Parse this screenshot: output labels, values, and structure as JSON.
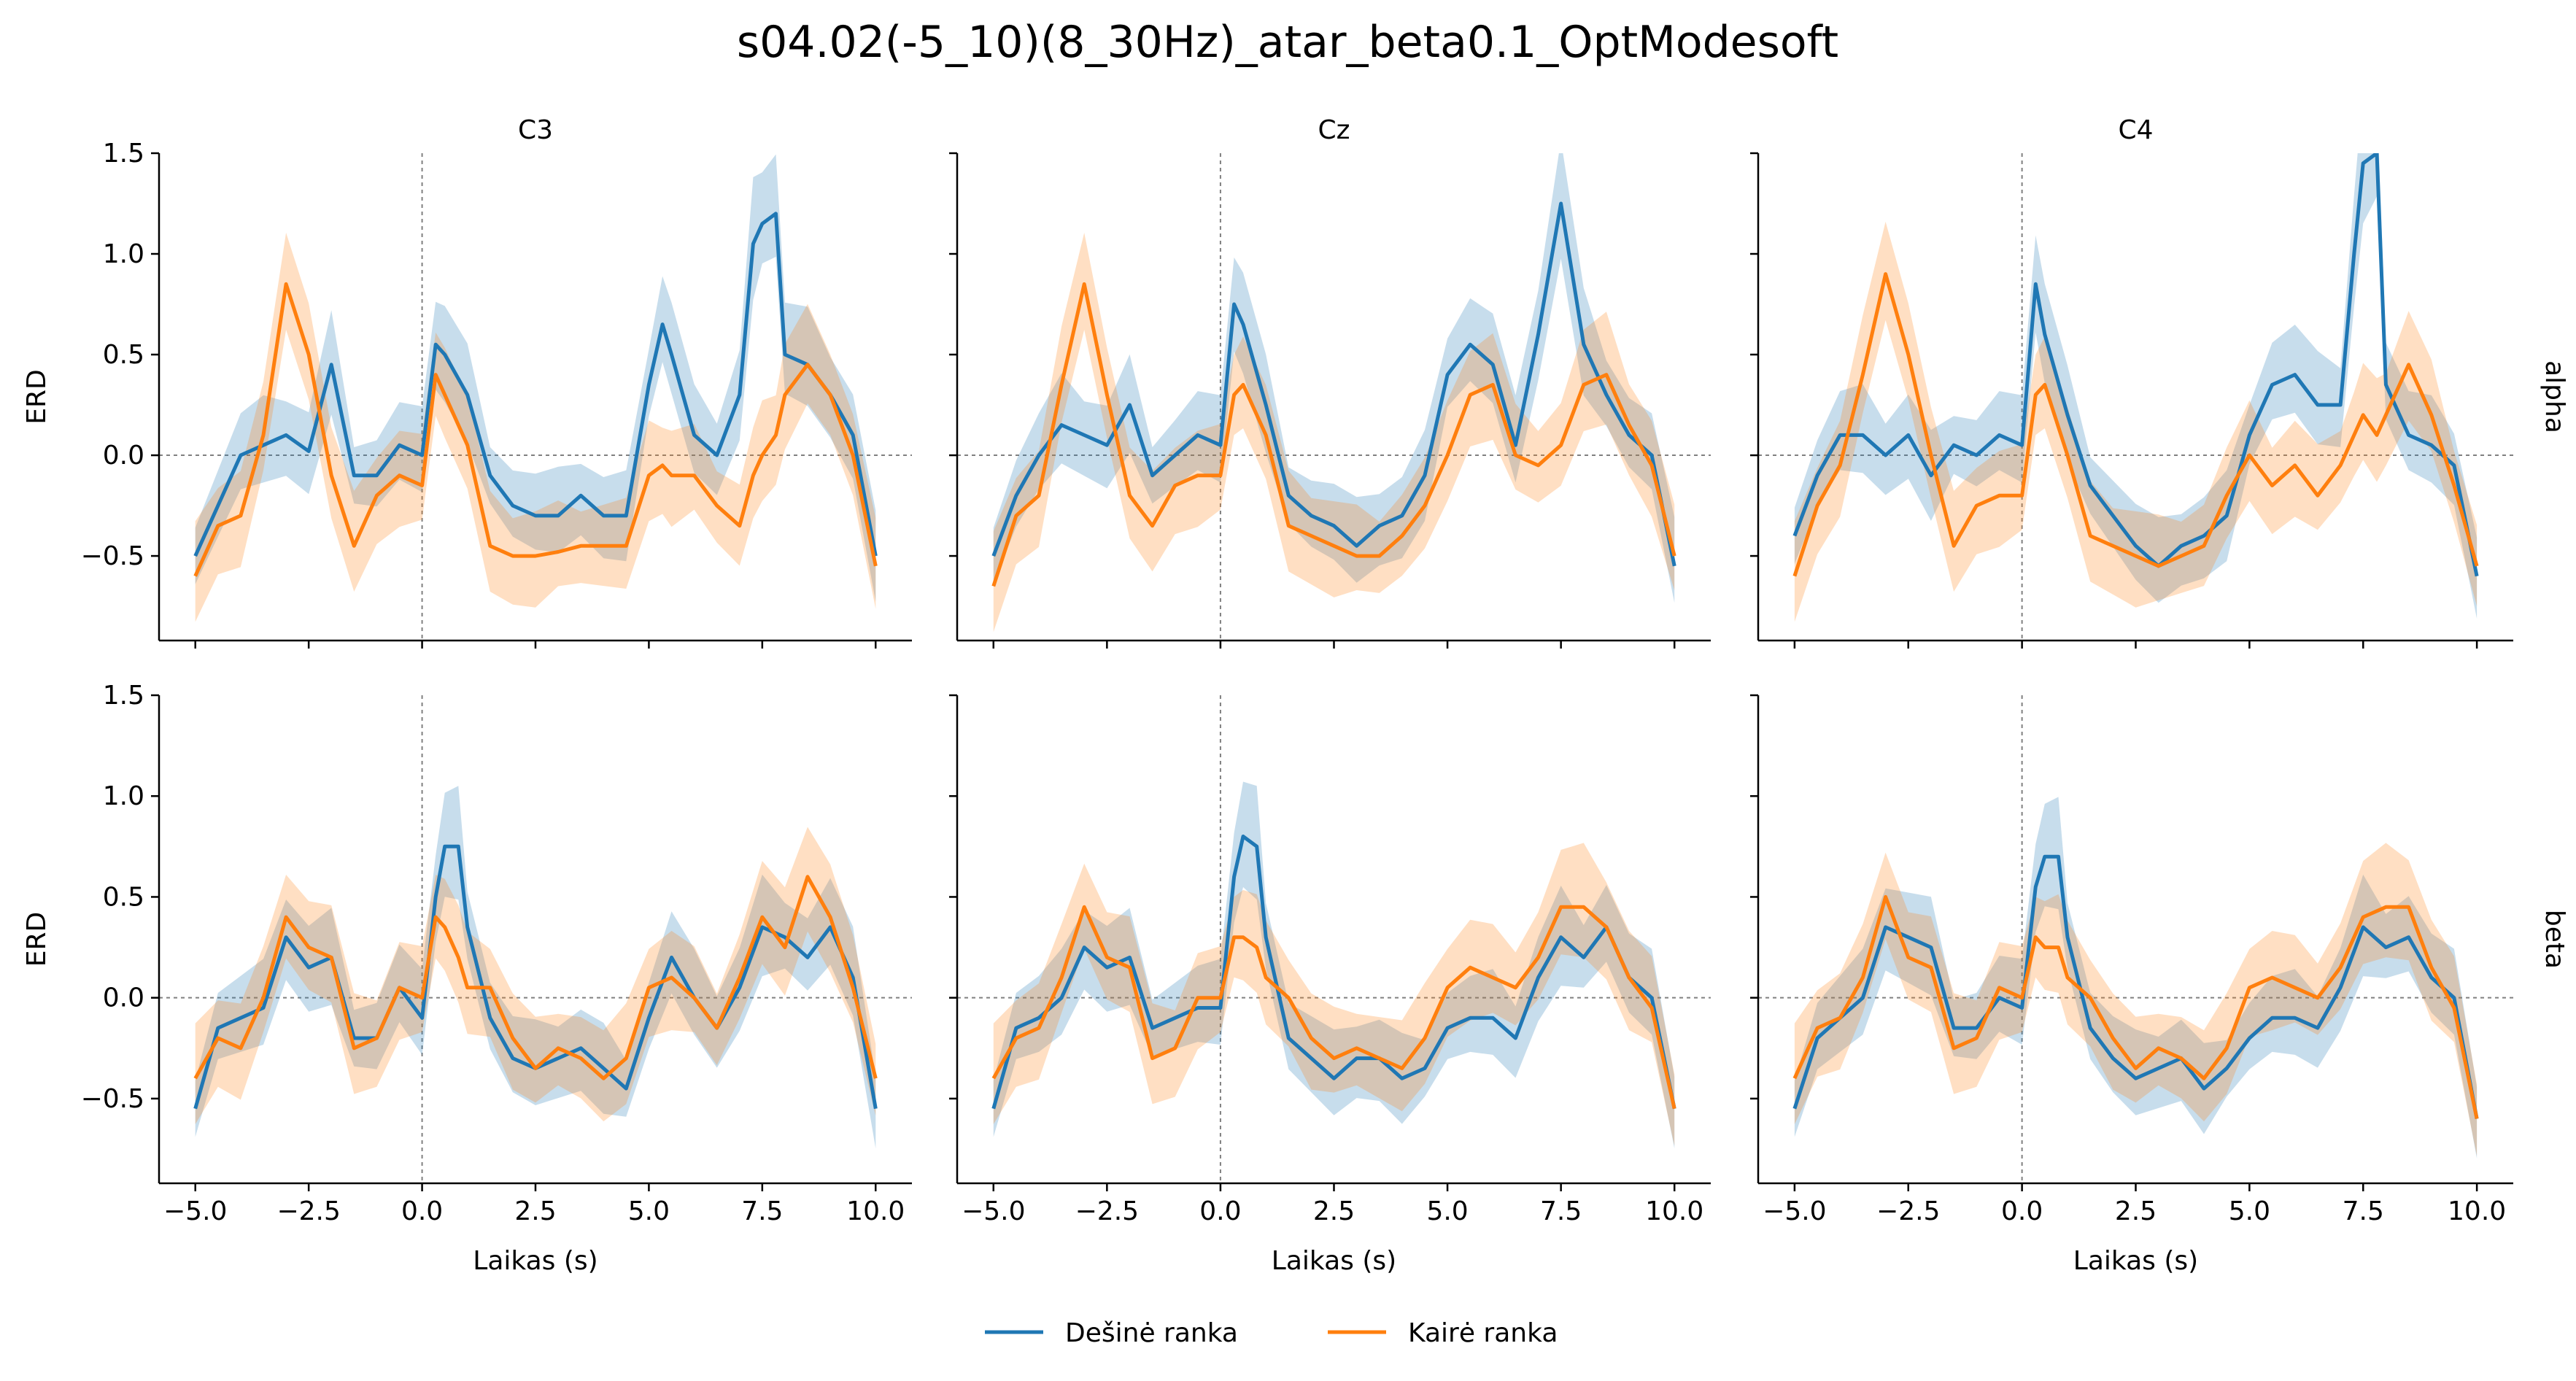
{
  "figure": {
    "title": "s04.02(-5_10)(8_30Hz)_atar_beta0.1_OptModesoft",
    "columns": [
      "C3",
      "Cz",
      "C4"
    ],
    "rows": [
      "alpha",
      "beta"
    ],
    "xlabel": "Laikas (s)",
    "ylabel": "ERD",
    "xticks": [
      "−5.0",
      "−2.5",
      "0.0",
      "2.5",
      "5.0",
      "7.5",
      "10.0"
    ],
    "yticks": [
      "−0.5",
      "0.0",
      "0.5",
      "1.0",
      "1.5"
    ],
    "legend": [
      {
        "label": "Dešinė ranka",
        "color": "#1f77b4"
      },
      {
        "label": "Kairė ranka",
        "color": "#ff7f0e"
      }
    ]
  },
  "chart_data": {
    "type": "line",
    "title": "s04.02(-5_10)(8_30Hz)_atar_beta0.1_OptModesoft",
    "xlabel": "Laikas (s)",
    "ylabel": "ERD",
    "xlim": [
      -5.8,
      10.8
    ],
    "ylim": [
      -0.92,
      1.5
    ],
    "grid": false,
    "legend_position": "bottom-center",
    "reference_lines": {
      "vertical_x": 0.0,
      "horizontal_y": 0.0,
      "style": "dashed-gray"
    },
    "shaded_bands": "variability band around each series (same color, translucent)",
    "series_names": [
      "Dešinė ranka",
      "Kairė ranka"
    ],
    "panels": [
      {
        "row": "alpha",
        "column": "C3",
        "x": [
          -5.0,
          -4.5,
          -4.0,
          -3.5,
          -3.0,
          -2.5,
          -2.0,
          -1.5,
          -1.0,
          -0.5,
          0.0,
          0.3,
          0.5,
          1.0,
          1.5,
          2.0,
          2.5,
          3.0,
          3.5,
          4.0,
          4.5,
          5.0,
          5.3,
          5.5,
          6.0,
          6.5,
          7.0,
          7.3,
          7.5,
          7.8,
          8.0,
          8.5,
          9.0,
          9.5,
          10.0
        ],
        "series": [
          {
            "name": "Dešinė ranka",
            "values": [
              -0.5,
              -0.25,
              0.0,
              0.05,
              0.1,
              0.02,
              0.45,
              -0.1,
              -0.1,
              0.05,
              0.0,
              0.55,
              0.5,
              0.3,
              -0.1,
              -0.25,
              -0.3,
              -0.3,
              -0.2,
              -0.3,
              -0.3,
              0.35,
              0.65,
              0.5,
              0.1,
              0.0,
              0.3,
              1.05,
              1.15,
              1.2,
              0.5,
              0.45,
              0.3,
              0.1,
              -0.5
            ]
          },
          {
            "name": "Kairė ranka",
            "values": [
              -0.6,
              -0.35,
              -0.3,
              0.1,
              0.85,
              0.5,
              -0.1,
              -0.45,
              -0.2,
              -0.1,
              -0.15,
              0.4,
              0.3,
              0.05,
              -0.45,
              -0.5,
              -0.5,
              -0.48,
              -0.45,
              -0.45,
              -0.45,
              -0.1,
              -0.05,
              -0.1,
              -0.1,
              -0.25,
              -0.35,
              -0.1,
              0.0,
              0.1,
              0.3,
              0.45,
              0.3,
              0.0,
              -0.55
            ]
          }
        ]
      },
      {
        "row": "alpha",
        "column": "Cz",
        "x": [
          -5.0,
          -4.5,
          -4.0,
          -3.5,
          -3.0,
          -2.5,
          -2.0,
          -1.5,
          -1.0,
          -0.5,
          0.0,
          0.3,
          0.5,
          1.0,
          1.5,
          2.0,
          2.5,
          3.0,
          3.5,
          4.0,
          4.5,
          5.0,
          5.5,
          6.0,
          6.5,
          7.0,
          7.5,
          8.0,
          8.5,
          9.0,
          9.5,
          10.0
        ],
        "series": [
          {
            "name": "Dešinė ranka",
            "values": [
              -0.5,
              -0.2,
              0.0,
              0.15,
              0.1,
              0.05,
              0.25,
              -0.1,
              0.0,
              0.1,
              0.05,
              0.75,
              0.65,
              0.25,
              -0.2,
              -0.3,
              -0.35,
              -0.45,
              -0.35,
              -0.3,
              -0.1,
              0.4,
              0.55,
              0.45,
              0.05,
              0.6,
              1.25,
              0.55,
              0.3,
              0.1,
              0.0,
              -0.55
            ]
          },
          {
            "name": "Kairė ranka",
            "values": [
              -0.65,
              -0.3,
              -0.2,
              0.35,
              0.85,
              0.3,
              -0.2,
              -0.35,
              -0.15,
              -0.1,
              -0.1,
              0.3,
              0.35,
              0.1,
              -0.35,
              -0.4,
              -0.45,
              -0.5,
              -0.5,
              -0.4,
              -0.25,
              0.0,
              0.3,
              0.35,
              0.0,
              -0.05,
              0.05,
              0.35,
              0.4,
              0.15,
              -0.05,
              -0.5
            ]
          }
        ]
      },
      {
        "row": "alpha",
        "column": "C4",
        "x": [
          -5.0,
          -4.5,
          -4.0,
          -3.5,
          -3.0,
          -2.5,
          -2.0,
          -1.5,
          -1.0,
          -0.5,
          0.0,
          0.3,
          0.5,
          1.0,
          1.5,
          2.0,
          2.5,
          3.0,
          3.5,
          4.0,
          4.5,
          5.0,
          5.5,
          6.0,
          6.5,
          7.0,
          7.3,
          7.5,
          7.8,
          8.0,
          8.5,
          9.0,
          9.5,
          10.0
        ],
        "series": [
          {
            "name": "Dešinė ranka",
            "values": [
              -0.4,
              -0.1,
              0.1,
              0.1,
              0.0,
              0.1,
              -0.1,
              0.05,
              0.0,
              0.1,
              0.05,
              0.85,
              0.6,
              0.2,
              -0.15,
              -0.3,
              -0.45,
              -0.55,
              -0.45,
              -0.4,
              -0.3,
              0.1,
              0.35,
              0.4,
              0.25,
              0.25,
              1.0,
              1.45,
              1.5,
              0.35,
              0.1,
              0.05,
              -0.05,
              -0.6
            ]
          },
          {
            "name": "Kairė ranka",
            "values": [
              -0.6,
              -0.25,
              -0.05,
              0.4,
              0.9,
              0.5,
              0.0,
              -0.45,
              -0.25,
              -0.2,
              -0.2,
              0.3,
              0.35,
              0.0,
              -0.4,
              -0.45,
              -0.5,
              -0.55,
              -0.5,
              -0.45,
              -0.2,
              0.0,
              -0.15,
              -0.05,
              -0.2,
              -0.05,
              0.1,
              0.2,
              0.1,
              0.2,
              0.45,
              0.2,
              -0.15,
              -0.55
            ]
          }
        ]
      },
      {
        "row": "beta",
        "column": "C3",
        "x": [
          -5.0,
          -4.5,
          -4.0,
          -3.5,
          -3.0,
          -2.5,
          -2.0,
          -1.5,
          -1.0,
          -0.5,
          0.0,
          0.3,
          0.5,
          0.8,
          1.0,
          1.5,
          2.0,
          2.5,
          3.0,
          3.5,
          4.0,
          4.5,
          5.0,
          5.5,
          6.0,
          6.5,
          7.0,
          7.5,
          8.0,
          8.5,
          9.0,
          9.5,
          10.0
        ],
        "series": [
          {
            "name": "Dešinė ranka",
            "values": [
              -0.55,
              -0.15,
              -0.1,
              -0.05,
              0.3,
              0.15,
              0.2,
              -0.2,
              -0.2,
              0.05,
              -0.1,
              0.5,
              0.75,
              0.75,
              0.35,
              -0.1,
              -0.3,
              -0.35,
              -0.3,
              -0.25,
              -0.35,
              -0.45,
              -0.1,
              0.2,
              0.0,
              -0.15,
              0.05,
              0.35,
              0.3,
              0.2,
              0.35,
              0.1,
              -0.55
            ]
          },
          {
            "name": "Kairė ranka",
            "values": [
              -0.4,
              -0.2,
              -0.25,
              0.0,
              0.4,
              0.25,
              0.2,
              -0.25,
              -0.2,
              0.05,
              0.0,
              0.4,
              0.35,
              0.2,
              0.05,
              0.05,
              -0.2,
              -0.35,
              -0.25,
              -0.3,
              -0.4,
              -0.3,
              0.05,
              0.1,
              0.0,
              -0.15,
              0.1,
              0.4,
              0.25,
              0.6,
              0.4,
              0.05,
              -0.4
            ]
          }
        ]
      },
      {
        "row": "beta",
        "column": "Cz",
        "x": [
          -5.0,
          -4.5,
          -4.0,
          -3.5,
          -3.0,
          -2.5,
          -2.0,
          -1.5,
          -1.0,
          -0.5,
          0.0,
          0.3,
          0.5,
          0.8,
          1.0,
          1.5,
          2.0,
          2.5,
          3.0,
          3.5,
          4.0,
          4.5,
          5.0,
          5.5,
          6.0,
          6.5,
          7.0,
          7.5,
          8.0,
          8.5,
          9.0,
          9.5,
          10.0
        ],
        "series": [
          {
            "name": "Dešinė ranka",
            "values": [
              -0.55,
              -0.15,
              -0.1,
              0.0,
              0.25,
              0.15,
              0.2,
              -0.15,
              -0.1,
              -0.05,
              -0.05,
              0.6,
              0.8,
              0.75,
              0.3,
              -0.2,
              -0.3,
              -0.4,
              -0.3,
              -0.3,
              -0.4,
              -0.35,
              -0.15,
              -0.1,
              -0.1,
              -0.2,
              0.1,
              0.3,
              0.2,
              0.35,
              0.1,
              0.0,
              -0.55
            ]
          },
          {
            "name": "Kairė ranka",
            "values": [
              -0.4,
              -0.2,
              -0.15,
              0.1,
              0.45,
              0.2,
              0.15,
              -0.3,
              -0.25,
              0.0,
              0.0,
              0.3,
              0.3,
              0.25,
              0.1,
              0.0,
              -0.2,
              -0.3,
              -0.25,
              -0.3,
              -0.35,
              -0.2,
              0.05,
              0.15,
              0.1,
              0.05,
              0.2,
              0.45,
              0.45,
              0.35,
              0.1,
              -0.05,
              -0.55
            ]
          }
        ]
      },
      {
        "row": "beta",
        "column": "C4",
        "x": [
          -5.0,
          -4.5,
          -4.0,
          -3.5,
          -3.0,
          -2.5,
          -2.0,
          -1.5,
          -1.0,
          -0.5,
          0.0,
          0.3,
          0.5,
          0.8,
          1.0,
          1.5,
          2.0,
          2.5,
          3.0,
          3.5,
          4.0,
          4.5,
          5.0,
          5.5,
          6.0,
          6.5,
          7.0,
          7.5,
          8.0,
          8.5,
          9.0,
          9.5,
          10.0
        ],
        "series": [
          {
            "name": "Dešinė ranka",
            "values": [
              -0.55,
              -0.2,
              -0.1,
              0.0,
              0.35,
              0.3,
              0.25,
              -0.15,
              -0.15,
              0.0,
              -0.05,
              0.55,
              0.7,
              0.7,
              0.3,
              -0.15,
              -0.3,
              -0.4,
              -0.35,
              -0.3,
              -0.45,
              -0.35,
              -0.2,
              -0.1,
              -0.1,
              -0.15,
              0.05,
              0.35,
              0.25,
              0.3,
              0.1,
              0.0,
              -0.6
            ]
          },
          {
            "name": "Kairė ranka",
            "values": [
              -0.4,
              -0.15,
              -0.1,
              0.1,
              0.5,
              0.2,
              0.15,
              -0.25,
              -0.2,
              0.05,
              0.0,
              0.3,
              0.25,
              0.25,
              0.1,
              0.0,
              -0.2,
              -0.35,
              -0.25,
              -0.3,
              -0.4,
              -0.25,
              0.05,
              0.1,
              0.05,
              0.0,
              0.15,
              0.4,
              0.45,
              0.45,
              0.15,
              -0.05,
              -0.6
            ]
          }
        ]
      }
    ]
  }
}
